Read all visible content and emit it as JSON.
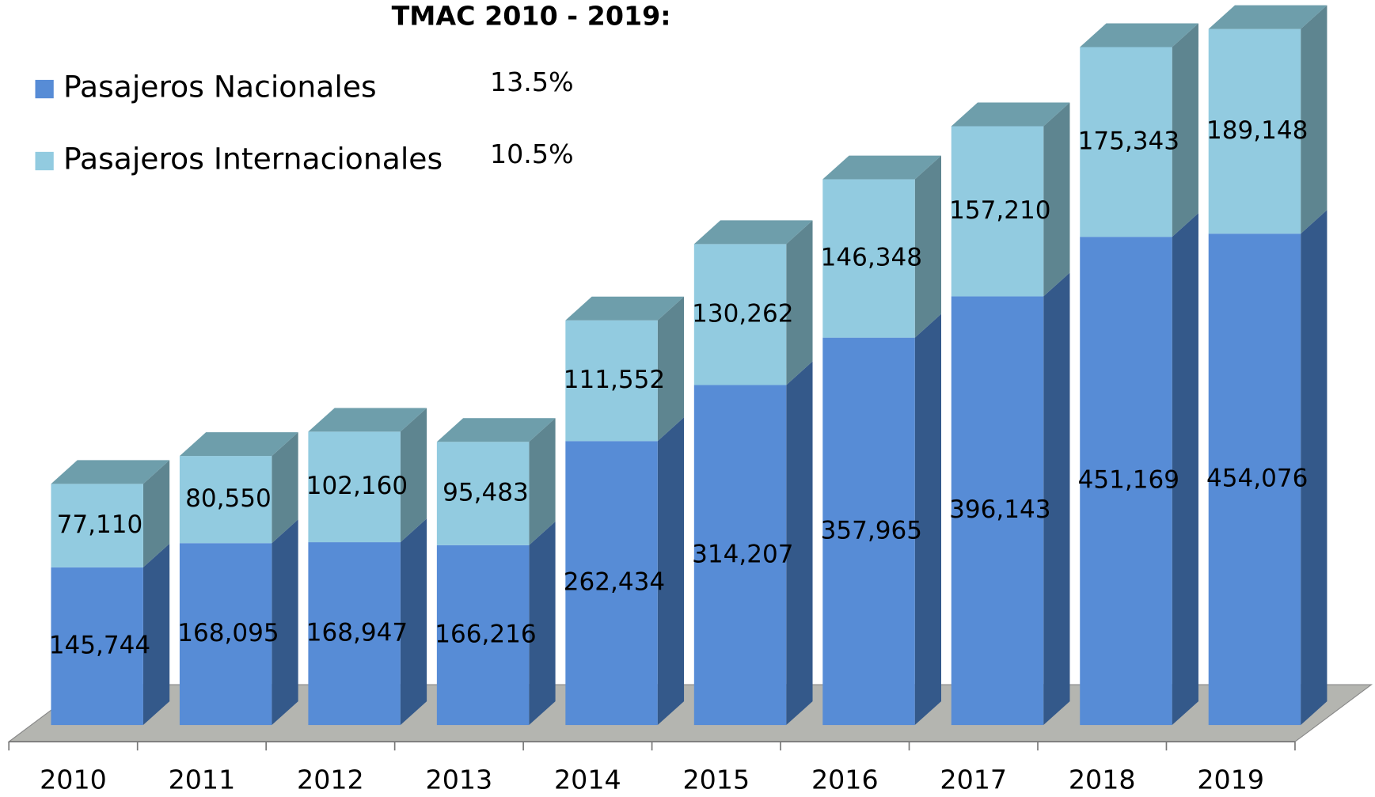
{
  "chart_data": {
    "type": "bar3d_stacked",
    "title": "TMAC 2010 - 2019:",
    "categories": [
      "2010",
      "2011",
      "2012",
      "2013",
      "2014",
      "2015",
      "2016",
      "2017",
      "2018",
      "2019"
    ],
    "series": [
      {
        "name": "Pasajeros Nacionales",
        "rate": "13.5%",
        "color": "#578cd6",
        "side_color": "#34598a",
        "top_color": "#4a78b8",
        "values": [
          145744,
          168095,
          168947,
          166216,
          262434,
          314207,
          357965,
          396143,
          451169,
          454076
        ],
        "value_labels": [
          "145,744",
          "168,095",
          "168,947",
          "166,216",
          "262,434",
          "314,207",
          "357,965",
          "396,143",
          "451,169",
          "454,076"
        ]
      },
      {
        "name": "Pasajeros Internacionales",
        "rate": "10.5%",
        "color": "#92cbe0",
        "side_color": "#5e8590",
        "top_color": "#6e9eab",
        "values": [
          77110,
          80550,
          102160,
          95483,
          111552,
          130262,
          146348,
          157210,
          175343,
          189148
        ],
        "value_labels": [
          "77,110",
          "80,550",
          "102,160",
          "95,483",
          "111,552",
          "130,262",
          "146,348",
          "157,210",
          "175,343",
          "189,148"
        ]
      }
    ],
    "ylim": [
      0,
      670000
    ],
    "legend": "top-left",
    "floor_color": "#b4b5b0"
  }
}
